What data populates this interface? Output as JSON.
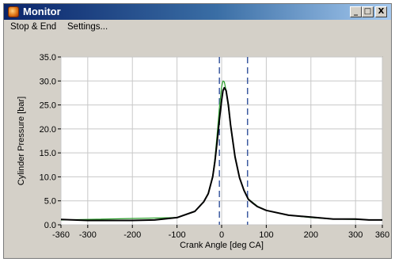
{
  "window": {
    "title": "Monitor",
    "minimize": "_",
    "maximize": "□",
    "close": "X"
  },
  "menu": {
    "items": [
      "Stop & End",
      "Settings..."
    ]
  },
  "chart_data": {
    "type": "line",
    "xlabel": "Crank Angle [deg CA]",
    "ylabel": "Cylinder Pressure [bar]",
    "xlim": [
      -360,
      360
    ],
    "ylim": [
      0,
      35
    ],
    "xticks": [
      -360,
      -300,
      -200,
      -100,
      0,
      100,
      200,
      300,
      360
    ],
    "yticks": [
      "0.0",
      "5.0",
      "10.0",
      "15.0",
      "20.0",
      "25.0",
      "30.0",
      "35.0"
    ],
    "grid": true,
    "vertical_markers": [
      -5,
      58
    ],
    "series": [
      {
        "color": "#2ca02c",
        "x": [
          -360,
          -100,
          -60,
          -40,
          -30,
          -20,
          -15,
          -10,
          -5,
          0,
          3,
          6,
          10,
          15,
          20,
          30,
          40,
          50,
          60,
          80,
          100,
          150,
          200,
          250,
          300,
          360
        ],
        "y": [
          1.0,
          1.5,
          2.8,
          4.8,
          6.6,
          10.2,
          13.8,
          19.0,
          24.5,
          28.8,
          30.0,
          29.8,
          28.0,
          24.5,
          20.5,
          14.0,
          9.8,
          7.2,
          5.4,
          3.9,
          3.0,
          2.0,
          1.5,
          1.2,
          1.1,
          1.0
        ]
      },
      {
        "color": "#000000",
        "x": [
          -360,
          -300,
          -200,
          -150,
          -100,
          -60,
          -40,
          -30,
          -20,
          -15,
          -10,
          -5,
          0,
          3,
          6,
          10,
          15,
          20,
          30,
          40,
          50,
          60,
          70,
          80,
          100,
          150,
          200,
          250,
          300,
          330,
          360
        ],
        "y": [
          1.1,
          0.9,
          0.9,
          1.0,
          1.5,
          2.8,
          4.8,
          6.5,
          10.0,
          13.2,
          17.5,
          22.0,
          26.0,
          28.0,
          28.6,
          28.0,
          25.0,
          20.8,
          14.2,
          9.8,
          7.2,
          5.3,
          4.5,
          3.8,
          3.0,
          2.0,
          1.6,
          1.2,
          1.2,
          1.0,
          1.0
        ]
      }
    ]
  }
}
